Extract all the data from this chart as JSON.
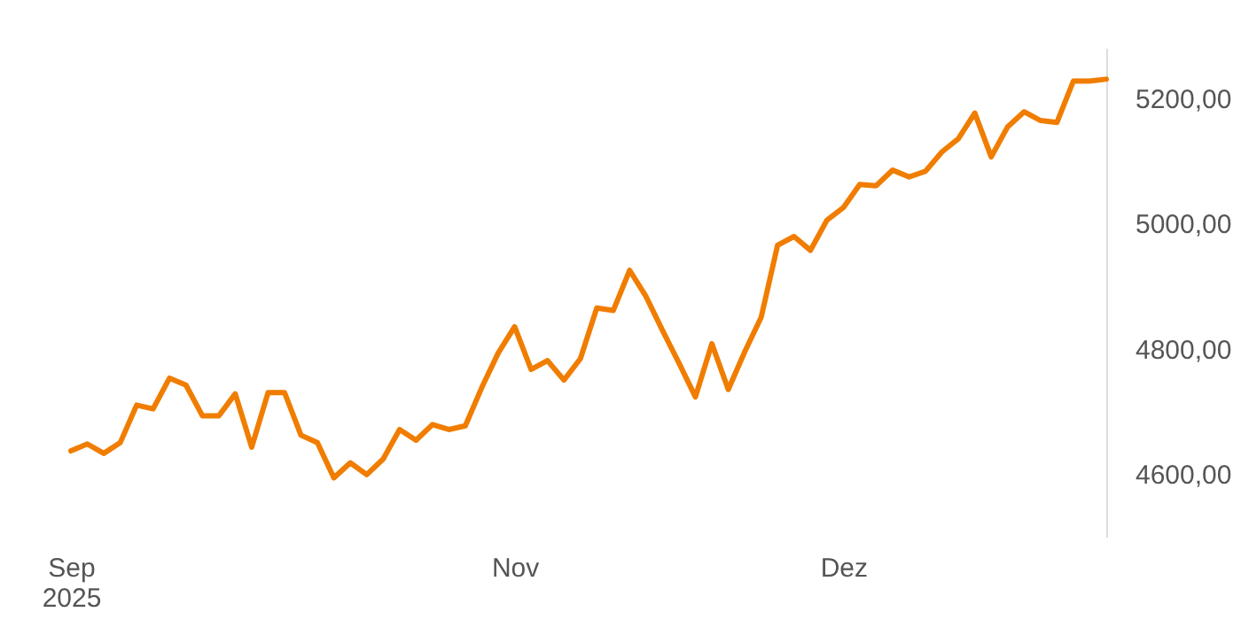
{
  "chart_data": {
    "type": "line",
    "categories": [
      "Sep\n2025",
      null,
      null,
      null,
      null,
      null,
      null,
      null,
      null,
      null,
      null,
      null,
      null,
      null,
      null,
      null,
      null,
      null,
      null,
      null,
      null,
      null,
      null,
      null,
      null,
      null,
      null,
      "Nov",
      null,
      null,
      null,
      null,
      null,
      null,
      null,
      null,
      null,
      null,
      null,
      null,
      null,
      null,
      null,
      null,
      null,
      null,
      null,
      "Dez",
      null,
      null,
      null,
      null,
      null,
      null,
      null,
      null,
      null,
      null,
      null,
      null,
      null,
      null,
      null,
      null
    ],
    "series": [
      {
        "color": "#f07d00",
        "values": [
          4637,
          4648,
          4633,
          4650,
          4710,
          4704,
          4753,
          4742,
          4693,
          4693,
          4728,
          4643,
          4730,
          4730,
          4662,
          4650,
          4594,
          4618,
          4599,
          4624,
          4671,
          4654,
          4679,
          4671,
          4677,
          4738,
          4793,
          4835,
          4767,
          4781,
          4750,
          4784,
          4865,
          4861,
          4925,
          4883,
          4829,
          4777,
          4723,
          4808,
          4735,
          4795,
          4850,
          4965,
          4979,
          4957,
          5005,
          5025,
          5062,
          5060,
          5085,
          5074,
          5083,
          5114,
          5135,
          5176,
          5106,
          5154,
          5178,
          5164,
          5161,
          5227,
          5227,
          5230
        ]
      }
    ],
    "ylim": [
      4500,
      5280
    ],
    "yticks": [
      {
        "value": 4600,
        "label": "4600,00"
      },
      {
        "value": 4800,
        "label": "4800,00"
      },
      {
        "value": 5000,
        "label": "5000,00"
      },
      {
        "value": 5200,
        "label": "5200,00"
      }
    ],
    "grid": false,
    "legend": false,
    "marker": "none",
    "line_style": "solid"
  }
}
